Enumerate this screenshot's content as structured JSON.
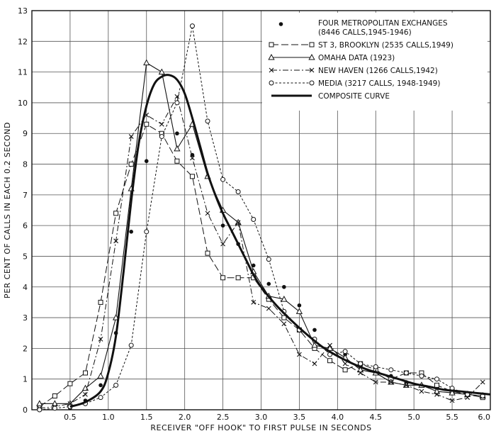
{
  "chart_data": {
    "type": "line",
    "xlabel": "RECEIVER \"OFF HOOK\" TO FIRST PULSE IN SECONDS",
    "ylabel": "PER CENT OF CALLS IN EACH 0.2 SECOND",
    "xlim": [
      0,
      6
    ],
    "ylim": [
      0,
      13
    ],
    "x_ticks": [
      "0.5",
      "1.0",
      "1.5",
      "2.0",
      "2.5",
      "3.0",
      "3.5",
      "4.0",
      "4.5",
      "5.0",
      "5.5",
      "6.0"
    ],
    "y_ticks": [
      "0",
      "1",
      "2",
      "3",
      "4",
      "5",
      "6",
      "7",
      "8",
      "9",
      "10",
      "11",
      "12",
      "13"
    ],
    "grid": true,
    "legend_position": "top-right",
    "series": [
      {
        "name": "FOUR METROPOLITAN EXCHANGES",
        "legend_lines": [
          "FOUR METROPOLITAN EXCHANGES",
          "(8446 CALLS,1945-1946)"
        ],
        "marker": "dot",
        "line": "none",
        "x": [
          0.5,
          0.7,
          0.9,
          1.1,
          1.3,
          1.5,
          1.7,
          1.9,
          2.1,
          2.3,
          2.5,
          2.7,
          2.9,
          3.1,
          3.3,
          3.5,
          3.7,
          3.9,
          4.1,
          4.3,
          4.5,
          4.7,
          4.9,
          5.1,
          5.3,
          5.5,
          5.7,
          5.9
        ],
        "y": [
          0.05,
          0.3,
          0.8,
          2.5,
          5.8,
          8.1,
          8.9,
          9.0,
          8.3,
          7.6,
          6.0,
          5.4,
          4.7,
          4.1,
          4.0,
          3.4,
          2.6,
          2.0,
          1.8,
          1.4,
          1.3,
          1.1,
          0.9,
          0.8,
          0.7,
          0.6,
          0.55,
          0.5
        ]
      },
      {
        "name": "ST 3, BROOKLYN",
        "legend_lines": [
          "ST 3, BROOKLYN (2535 CALLS,1949)"
        ],
        "marker": "square",
        "line": "longdash",
        "x": [
          0.1,
          0.3,
          0.5,
          0.7,
          0.9,
          1.1,
          1.3,
          1.5,
          1.7,
          1.9,
          2.1,
          2.3,
          2.5,
          2.7,
          2.9,
          3.1,
          3.3,
          3.5,
          3.7,
          3.9,
          4.1,
          4.3,
          4.5,
          4.7,
          4.9,
          5.1,
          5.3,
          5.5,
          5.7,
          5.9
        ],
        "y": [
          0.1,
          0.45,
          0.85,
          1.2,
          3.5,
          6.4,
          8.0,
          9.3,
          9.0,
          8.1,
          7.6,
          5.1,
          4.3,
          4.3,
          4.3,
          3.6,
          3.0,
          2.6,
          2.0,
          1.6,
          1.3,
          1.5,
          1.3,
          1.0,
          1.2,
          1.2,
          0.8,
          0.6,
          0.5,
          0.4
        ]
      },
      {
        "name": "OMAHA DATA",
        "legend_lines": [
          "OMAHA DATA (1923)"
        ],
        "marker": "triangle",
        "line": "solid",
        "x": [
          0.1,
          0.3,
          0.5,
          0.7,
          0.9,
          1.1,
          1.3,
          1.5,
          1.7,
          1.9,
          2.1,
          2.3,
          2.5,
          2.7,
          2.9,
          3.1,
          3.3,
          3.5,
          3.7,
          3.9,
          4.1,
          4.3,
          4.5,
          4.7,
          4.9,
          5.1,
          5.3,
          5.5,
          5.7,
          5.9
        ],
        "y": [
          0.2,
          0.2,
          0.2,
          0.7,
          1.1,
          3.0,
          7.2,
          11.3,
          11.0,
          8.5,
          9.3,
          7.6,
          6.5,
          6.1,
          4.5,
          3.7,
          3.6,
          3.2,
          2.1,
          2.0,
          1.7,
          1.3,
          1.2,
          0.9,
          0.8,
          0.8,
          0.6,
          0.55,
          0.5,
          0.45
        ]
      },
      {
        "name": "NEW HAVEN",
        "legend_lines": [
          "NEW HAVEN (1266 CALLS,1942)"
        ],
        "marker": "cross",
        "line": "dashdot",
        "x": [
          0.1,
          0.3,
          0.5,
          0.7,
          0.9,
          1.1,
          1.3,
          1.5,
          1.7,
          1.9,
          2.1,
          2.3,
          2.5,
          2.7,
          2.9,
          3.1,
          3.3,
          3.5,
          3.7,
          3.9,
          4.1,
          4.3,
          4.5,
          4.7,
          4.9,
          5.1,
          5.3,
          5.5,
          5.7,
          5.9
        ],
        "y": [
          0.05,
          0.1,
          0.2,
          0.5,
          2.3,
          5.5,
          8.9,
          9.6,
          9.3,
          10.2,
          8.2,
          6.4,
          5.4,
          6.1,
          3.5,
          3.3,
          2.8,
          1.8,
          1.5,
          2.1,
          1.5,
          1.2,
          0.9,
          0.9,
          0.8,
          0.6,
          0.5,
          0.3,
          0.4,
          0.9
        ]
      },
      {
        "name": "MEDIA",
        "legend_lines": [
          "MEDIA (3217 CALLS, 1948-1949)"
        ],
        "marker": "circle",
        "line": "shortdash",
        "x": [
          0.1,
          0.3,
          0.5,
          0.7,
          0.9,
          1.1,
          1.3,
          1.5,
          1.7,
          1.9,
          2.1,
          2.3,
          2.5,
          2.7,
          2.9,
          3.1,
          3.3,
          3.5,
          3.7,
          3.9,
          4.1,
          4.3,
          4.5,
          4.7,
          4.9,
          5.1,
          5.3,
          5.5,
          5.7,
          5.9
        ],
        "y": [
          0.0,
          0.05,
          0.1,
          0.2,
          0.4,
          0.8,
          2.1,
          5.8,
          8.9,
          10.0,
          12.5,
          9.4,
          7.5,
          7.1,
          6.2,
          4.9,
          3.2,
          2.6,
          2.3,
          1.8,
          1.9,
          1.5,
          1.4,
          1.3,
          1.2,
          1.1,
          1.0,
          0.7,
          0.5,
          0.45
        ]
      },
      {
        "name": "COMPOSITE CURVE",
        "legend_lines": [
          "COMPOSITE CURVE"
        ],
        "marker": "none",
        "line": "thick",
        "x": [
          0.5,
          0.7,
          0.9,
          1.0,
          1.1,
          1.2,
          1.3,
          1.4,
          1.5,
          1.6,
          1.7,
          1.8,
          1.9,
          2.0,
          2.1,
          2.2,
          2.3,
          2.4,
          2.5,
          2.6,
          2.7,
          2.8,
          2.9,
          3.0,
          3.2,
          3.4,
          3.6,
          3.8,
          4.0,
          4.2,
          4.4,
          4.6,
          4.8,
          5.0,
          5.2,
          5.4,
          5.6,
          5.8,
          6.0
        ],
        "y": [
          0.1,
          0.25,
          0.6,
          1.2,
          2.4,
          4.5,
          6.8,
          8.7,
          9.9,
          10.6,
          10.85,
          10.9,
          10.75,
          10.3,
          9.5,
          8.6,
          7.7,
          7.0,
          6.4,
          5.9,
          5.4,
          4.9,
          4.4,
          4.0,
          3.4,
          2.9,
          2.45,
          2.05,
          1.75,
          1.5,
          1.3,
          1.15,
          1.0,
          0.85,
          0.75,
          0.65,
          0.6,
          0.55,
          0.5
        ]
      }
    ]
  }
}
